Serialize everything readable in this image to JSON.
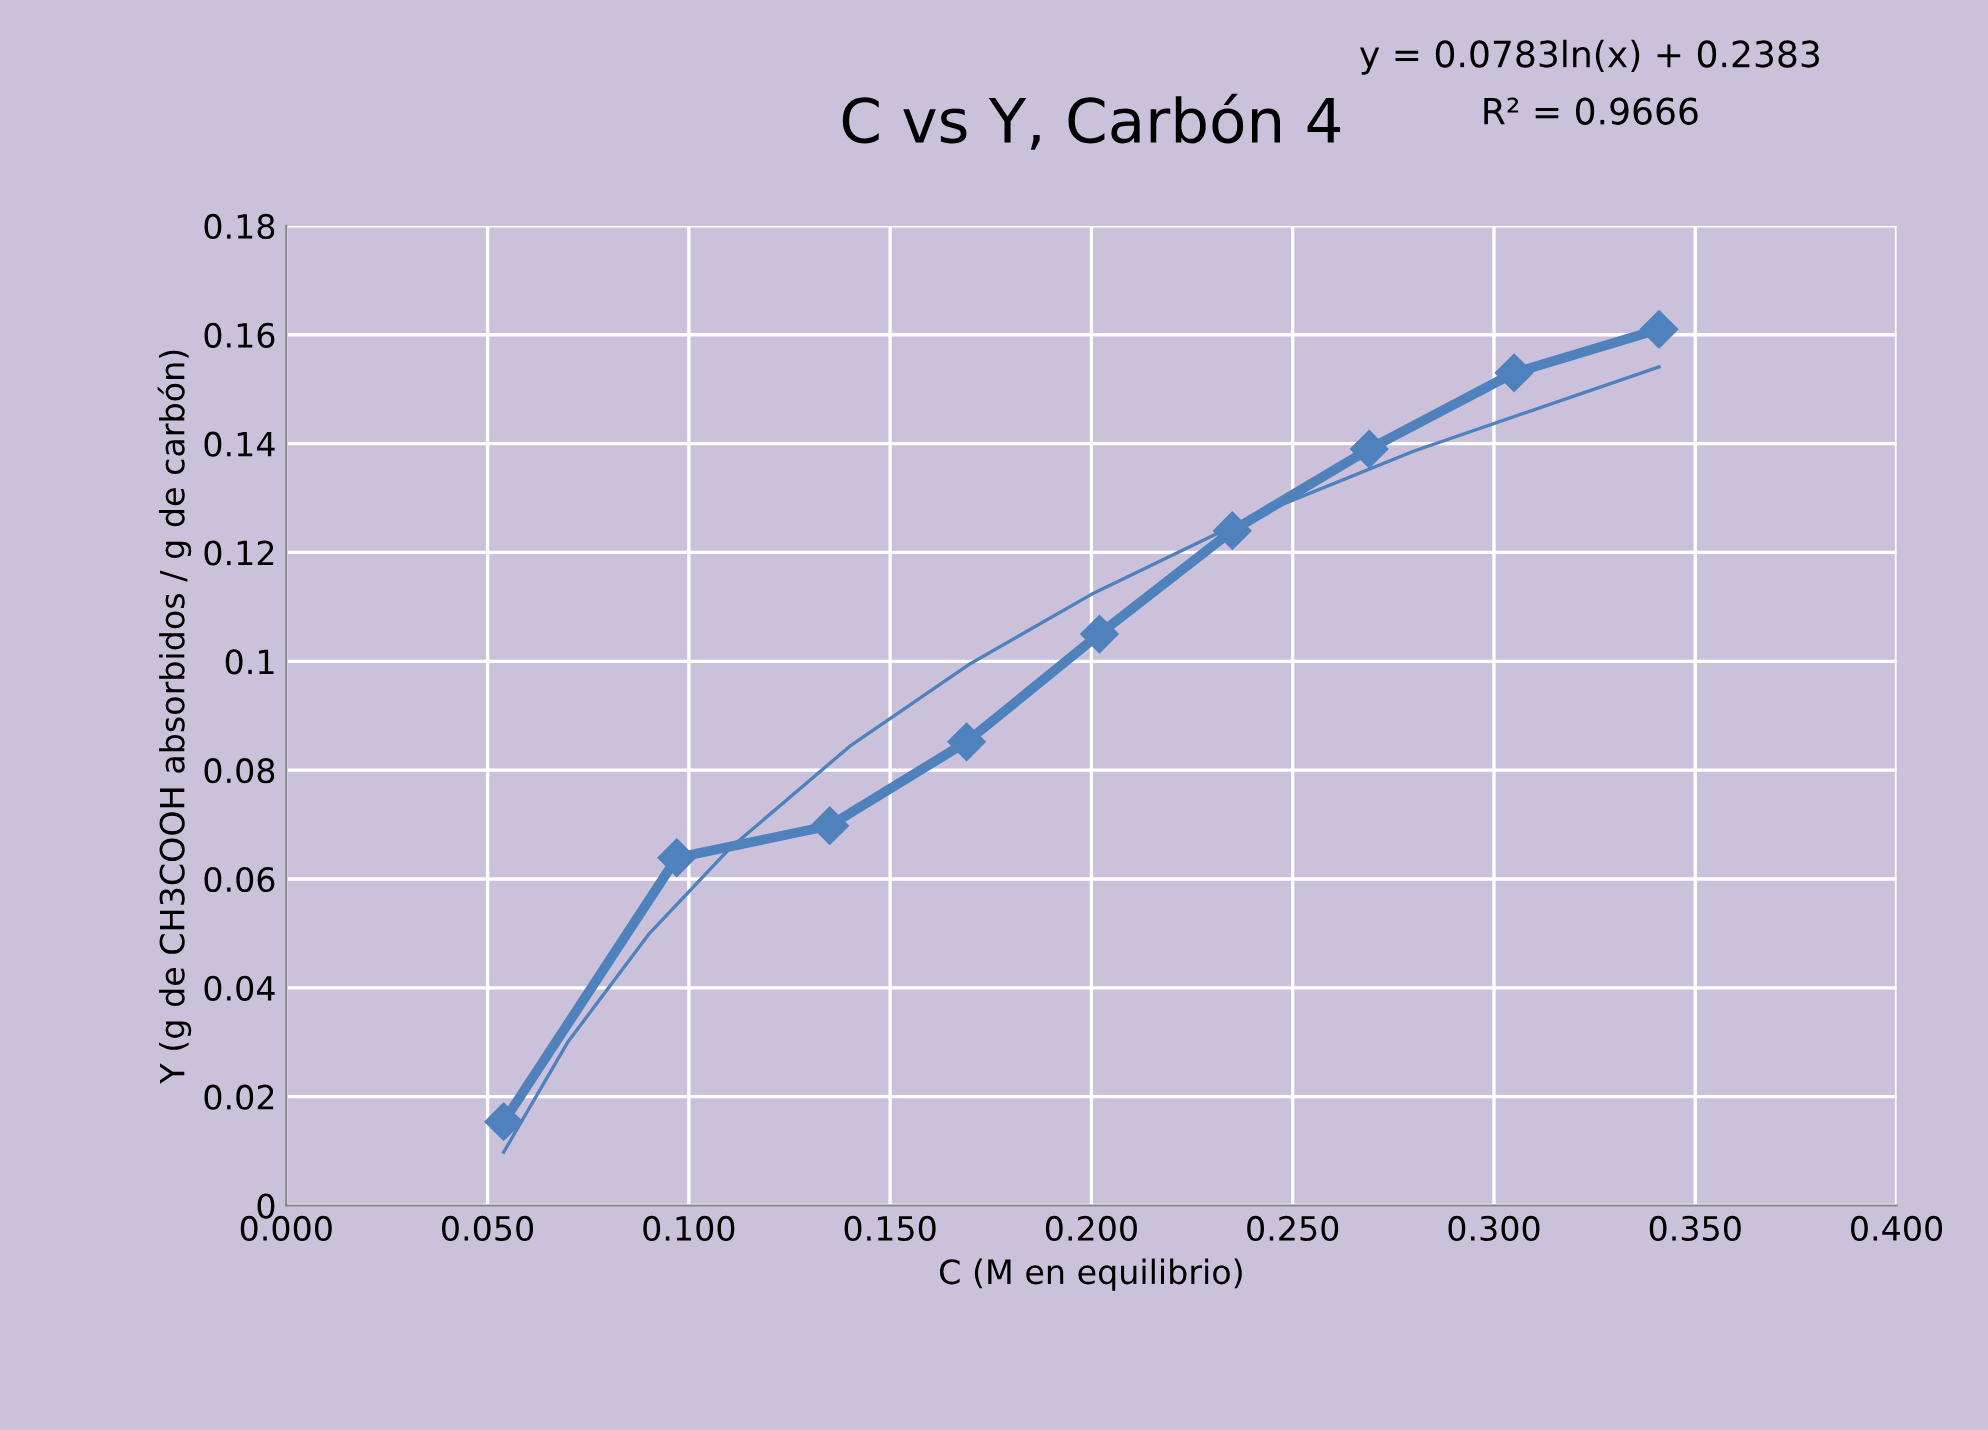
{
  "chart_data": {
    "type": "line",
    "title": "C vs Y, Carbón 4",
    "xlabel": "C (M en equilibrio)",
    "ylabel": "Y (g de CH3COOH absorbidos / g de carbón)",
    "x": [
      0.054,
      0.097,
      0.135,
      0.169,
      0.202,
      0.235,
      0.269,
      0.305,
      0.341
    ],
    "series": [
      {
        "color": "#4f81bd",
        "values": [
          0.0154,
          0.0639,
          0.0698,
          0.0852,
          0.105,
          0.124,
          0.139,
          0.153,
          0.161
        ],
        "marker": "diamond",
        "line_style": "solid"
      },
      {
        "type": "line",
        "color": "#4f81bd",
        "x": [
          0.054,
          0.07,
          0.09,
          0.11,
          0.14,
          0.17,
          0.2,
          0.24,
          0.28,
          0.341
        ],
        "values": [
          0.0098,
          0.0301,
          0.0498,
          0.0655,
          0.0844,
          0.0996,
          0.1123,
          0.1266,
          0.1386,
          0.1541
        ],
        "marker": "none",
        "line_style": "solid"
      }
    ],
    "annotations": [
      "y = 0.0783ln(x) + 0.2383",
      "R² = 0.9666"
    ],
    "xlim": [
      0,
      0.4
    ],
    "xticks": [
      {
        "value": 0,
        "label": "0.000"
      },
      {
        "value": 0.05,
        "label": "0.050"
      },
      {
        "value": 0.1,
        "label": "0.100"
      },
      {
        "value": 0.15,
        "label": "0.150"
      },
      {
        "value": 0.2,
        "label": "0.200"
      },
      {
        "value": 0.25,
        "label": "0.250"
      },
      {
        "value": 0.3,
        "label": "0.300"
      },
      {
        "value": 0.35,
        "label": "0.350"
      },
      {
        "value": 0.4,
        "label": "0.400"
      }
    ],
    "ylim": [
      0,
      0.18
    ],
    "yticks": [
      0,
      0.02,
      0.04,
      0.06,
      0.08,
      0.1,
      0.12,
      0.14,
      0.16,
      0.18
    ],
    "grid": true,
    "legend": false
  }
}
